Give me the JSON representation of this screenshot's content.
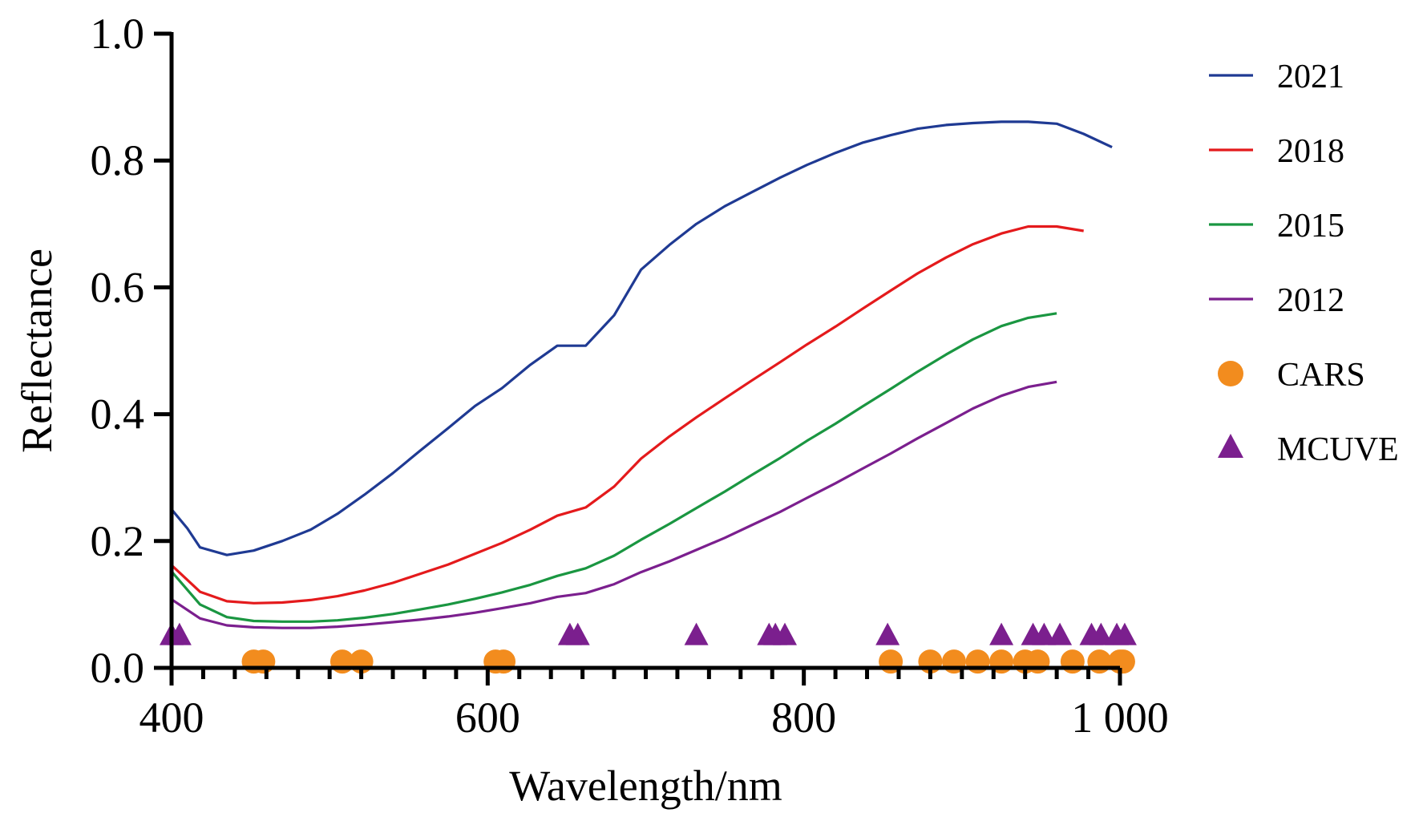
{
  "chart_data": {
    "type": "line",
    "xlabel": "Wavelength/nm",
    "ylabel": "Reflectance",
    "xlim": [
      400,
      1000
    ],
    "ylim": [
      0,
      1.0
    ],
    "x_ticks": [
      400,
      600,
      800,
      1000
    ],
    "x_tick_labels": [
      "400",
      "600",
      "800",
      "1 000"
    ],
    "x_minor_step": 20,
    "y_ticks": [
      0.0,
      0.2,
      0.4,
      0.6,
      0.8,
      1.0
    ],
    "y_tick_labels": [
      "0.0",
      "0.2",
      "0.4",
      "0.6",
      "0.8",
      "1.0"
    ],
    "grid": false,
    "legend_position": "right",
    "series": [
      {
        "name": "2021",
        "color": "#1f3a93",
        "points": [
          [
            400,
            0.25
          ],
          [
            410,
            0.22
          ],
          [
            418,
            0.19
          ],
          [
            435,
            0.178
          ],
          [
            452,
            0.185
          ],
          [
            470,
            0.2
          ],
          [
            488,
            0.218
          ],
          [
            505,
            0.243
          ],
          [
            522,
            0.273
          ],
          [
            540,
            0.307
          ],
          [
            557,
            0.342
          ],
          [
            575,
            0.378
          ],
          [
            592,
            0.413
          ],
          [
            609,
            0.441
          ],
          [
            627,
            0.478
          ],
          [
            644,
            0.508
          ],
          [
            662,
            0.508
          ],
          [
            680,
            0.556
          ],
          [
            697,
            0.628
          ],
          [
            715,
            0.667
          ],
          [
            732,
            0.7
          ],
          [
            750,
            0.728
          ],
          [
            767,
            0.75
          ],
          [
            785,
            0.773
          ],
          [
            802,
            0.793
          ],
          [
            820,
            0.812
          ],
          [
            837,
            0.828
          ],
          [
            855,
            0.84
          ],
          [
            872,
            0.85
          ],
          [
            890,
            0.856
          ],
          [
            907,
            0.859
          ],
          [
            925,
            0.861
          ],
          [
            942,
            0.861
          ],
          [
            960,
            0.858
          ],
          [
            977,
            0.842
          ],
          [
            995,
            0.821
          ]
        ]
      },
      {
        "name": "2018",
        "color": "#e41a1c",
        "points": [
          [
            400,
            0.162
          ],
          [
            418,
            0.12
          ],
          [
            435,
            0.105
          ],
          [
            452,
            0.102
          ],
          [
            470,
            0.103
          ],
          [
            488,
            0.107
          ],
          [
            505,
            0.113
          ],
          [
            522,
            0.122
          ],
          [
            540,
            0.134
          ],
          [
            557,
            0.148
          ],
          [
            575,
            0.163
          ],
          [
            592,
            0.18
          ],
          [
            609,
            0.197
          ],
          [
            627,
            0.218
          ],
          [
            644,
            0.24
          ],
          [
            662,
            0.253
          ],
          [
            680,
            0.286
          ],
          [
            697,
            0.33
          ],
          [
            715,
            0.365
          ],
          [
            732,
            0.395
          ],
          [
            750,
            0.425
          ],
          [
            767,
            0.453
          ],
          [
            785,
            0.482
          ],
          [
            802,
            0.51
          ],
          [
            820,
            0.538
          ],
          [
            837,
            0.566
          ],
          [
            855,
            0.595
          ],
          [
            872,
            0.622
          ],
          [
            890,
            0.647
          ],
          [
            907,
            0.668
          ],
          [
            925,
            0.685
          ],
          [
            942,
            0.696
          ],
          [
            960,
            0.696
          ],
          [
            977,
            0.689
          ]
        ]
      },
      {
        "name": "2015",
        "color": "#1a9641",
        "points": [
          [
            400,
            0.152
          ],
          [
            418,
            0.1
          ],
          [
            435,
            0.08
          ],
          [
            452,
            0.074
          ],
          [
            470,
            0.073
          ],
          [
            488,
            0.073
          ],
          [
            505,
            0.075
          ],
          [
            522,
            0.079
          ],
          [
            540,
            0.085
          ],
          [
            557,
            0.092
          ],
          [
            575,
            0.1
          ],
          [
            592,
            0.109
          ],
          [
            609,
            0.119
          ],
          [
            627,
            0.131
          ],
          [
            644,
            0.145
          ],
          [
            662,
            0.157
          ],
          [
            680,
            0.177
          ],
          [
            697,
            0.202
          ],
          [
            715,
            0.227
          ],
          [
            732,
            0.252
          ],
          [
            750,
            0.278
          ],
          [
            767,
            0.304
          ],
          [
            785,
            0.331
          ],
          [
            802,
            0.358
          ],
          [
            820,
            0.385
          ],
          [
            837,
            0.412
          ],
          [
            855,
            0.44
          ],
          [
            872,
            0.467
          ],
          [
            890,
            0.494
          ],
          [
            907,
            0.518
          ],
          [
            925,
            0.539
          ],
          [
            942,
            0.552
          ],
          [
            960,
            0.559
          ]
        ]
      },
      {
        "name": "2012",
        "color": "#7b1f8e",
        "points": [
          [
            400,
            0.108
          ],
          [
            418,
            0.078
          ],
          [
            435,
            0.067
          ],
          [
            452,
            0.064
          ],
          [
            470,
            0.063
          ],
          [
            488,
            0.063
          ],
          [
            505,
            0.065
          ],
          [
            522,
            0.068
          ],
          [
            540,
            0.072
          ],
          [
            557,
            0.076
          ],
          [
            575,
            0.081
          ],
          [
            592,
            0.087
          ],
          [
            609,
            0.094
          ],
          [
            627,
            0.102
          ],
          [
            644,
            0.112
          ],
          [
            662,
            0.118
          ],
          [
            680,
            0.132
          ],
          [
            697,
            0.151
          ],
          [
            715,
            0.168
          ],
          [
            732,
            0.186
          ],
          [
            750,
            0.205
          ],
          [
            767,
            0.225
          ],
          [
            785,
            0.246
          ],
          [
            802,
            0.268
          ],
          [
            820,
            0.291
          ],
          [
            837,
            0.314
          ],
          [
            855,
            0.338
          ],
          [
            872,
            0.362
          ],
          [
            890,
            0.386
          ],
          [
            907,
            0.409
          ],
          [
            925,
            0.429
          ],
          [
            942,
            0.443
          ],
          [
            960,
            0.451
          ]
        ]
      }
    ],
    "markers": [
      {
        "name": "CARS",
        "color": "#f28c1e",
        "shape": "circle",
        "y": 0.01,
        "x": [
          452,
          458,
          508,
          520,
          605,
          610,
          855,
          880,
          895,
          910,
          925,
          940,
          948,
          970,
          987,
          1000,
          1002
        ]
      },
      {
        "name": "MCUVE",
        "color": "#7b1f8e",
        "shape": "triangle",
        "y": 0.05,
        "x": [
          400,
          405,
          652,
          657,
          732,
          778,
          782,
          788,
          853,
          925,
          945,
          952,
          962,
          982,
          988,
          998,
          1003
        ]
      }
    ]
  }
}
